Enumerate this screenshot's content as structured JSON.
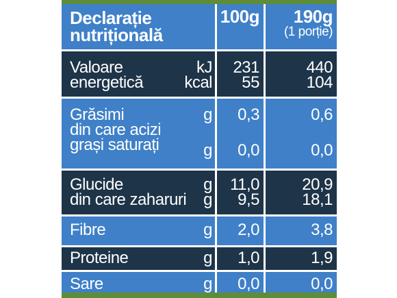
{
  "header": {
    "title_line1": "Declarație",
    "title_line2": "nutrițională",
    "col1": "100g",
    "col2_line1": "190g",
    "col2_line2": "(1 porție)"
  },
  "rows": [
    {
      "lines": [
        "Valoare",
        "energetică"
      ],
      "units": [
        "kJ",
        "kcal"
      ],
      "v100": [
        "231",
        "55"
      ],
      "v190": [
        "440",
        "104"
      ]
    },
    {
      "lines": [
        "Grăsimi",
        "din care acizi",
        "grași saturați"
      ],
      "units": [
        "g",
        "",
        "g"
      ],
      "v100": [
        "0,3",
        "",
        "0,0"
      ],
      "v190": [
        "0,6",
        "",
        "0,0"
      ]
    },
    {
      "lines": [
        "Glucide",
        "din care zaharuri"
      ],
      "units": [
        "g",
        "g"
      ],
      "v100": [
        "11,0",
        "9,5"
      ],
      "v190": [
        "20,9",
        "18,1"
      ]
    },
    {
      "lines": [
        "Fibre"
      ],
      "units": [
        "g"
      ],
      "v100": [
        "2,0"
      ],
      "v190": [
        "3,8"
      ]
    },
    {
      "lines": [
        "Proteine"
      ],
      "units": [
        "g"
      ],
      "v100": [
        "1,0"
      ],
      "v190": [
        "1,9"
      ]
    },
    {
      "lines": [
        "Sare"
      ],
      "units": [
        "g"
      ],
      "v100": [
        "0,0"
      ],
      "v190": [
        "0,0"
      ]
    }
  ],
  "colors": {
    "blue": "#3f80c8",
    "navy": "#1e3448",
    "green": "#5e8d3a"
  }
}
